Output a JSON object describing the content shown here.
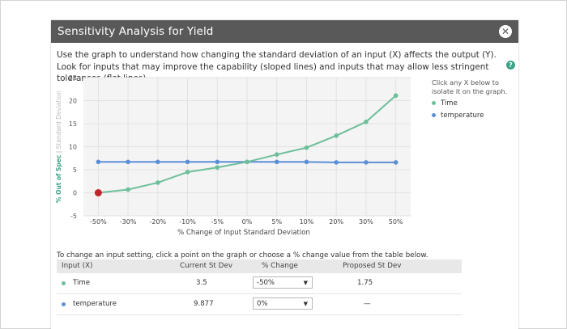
{
  "dialog": {
    "title": "Sensitivity Analysis for Yield",
    "close_icon": "close-icon",
    "description": "Use the graph to understand how changing the standard deviation of an input (X) affects the output (Y). Look for inputs that may improve the capability (sloped lines) and inputs that may allow less stringent tolerances (flat lines).",
    "help_icon": "?"
  },
  "legend": {
    "hint": "Click any X below to isolate it on the graph.",
    "items": [
      {
        "label": "Time",
        "color": "#6dbf9a"
      },
      {
        "label": "temperature",
        "color": "#5b8fd6"
      }
    ]
  },
  "chart_data": {
    "type": "line",
    "xlabel": "% Change of Input Standard Deviation",
    "ylabel_main": "% Out of Spec",
    "ylabel_sep": " | ",
    "ylabel_sub": "Standard Deviation",
    "categories": [
      "-50%",
      "-30%",
      "-20%",
      "-10%",
      "-5%",
      "0%",
      "5%",
      "10%",
      "20%",
      "30%",
      "50%"
    ],
    "yticks": [
      "25",
      "20",
      "15",
      "10",
      "5",
      "0",
      "-5"
    ],
    "ylim": [
      -5,
      25
    ],
    "grid": true,
    "selected_point": {
      "series": "Time",
      "x": "-50%",
      "y": 0,
      "color": "#c0262d"
    },
    "series": [
      {
        "name": "Time",
        "color": "#6dbf9a",
        "values": [
          0,
          0.7,
          2.2,
          4.5,
          5.5,
          6.7,
          8.3,
          9.8,
          12.4,
          15.4,
          21.1
        ]
      },
      {
        "name": "temperature",
        "color": "#5b8fd6",
        "values": [
          6.7,
          6.7,
          6.7,
          6.7,
          6.7,
          6.7,
          6.7,
          6.7,
          6.6,
          6.6,
          6.6
        ]
      }
    ]
  },
  "table": {
    "instruction": "To change an input setting, click a point on the graph or choose a % change value from the table below.",
    "headers": [
      "Input (X)",
      "Current St Dev",
      "% Change",
      "Proposed St Dev"
    ],
    "rows": [
      {
        "input": "Time",
        "color": "#6dbf9a",
        "current": "3.5",
        "change": "-50%",
        "proposed": "1.75"
      },
      {
        "input": "temperature",
        "color": "#5b8fd6",
        "current": "9.877",
        "change": "0%",
        "proposed": "—"
      }
    ]
  }
}
